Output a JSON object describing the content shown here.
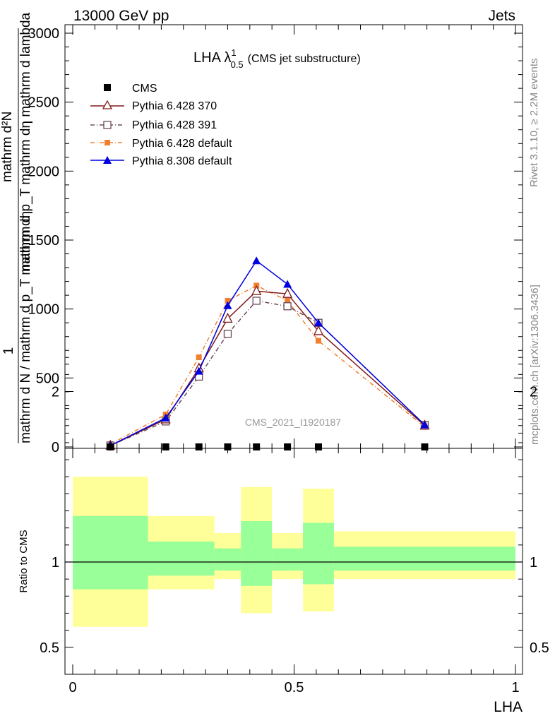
{
  "header": {
    "left": "13000 GeV pp",
    "right": "Jets"
  },
  "side_labels": {
    "rivet": "Rivet 3.1.10, ≥ 2.2M events",
    "mcplots": "mcplots.cern.ch [arXiv:1306.3436]"
  },
  "watermark": "CMS_2021_I1920187",
  "colors": {
    "cms": "#000000",
    "py370": "#7f1a1a",
    "py391": "#6b4a5a",
    "py6def": "#f08030",
    "py8def": "#0000e0",
    "band_outer": "#ffff99",
    "band_inner": "#99ff99"
  },
  "chart_data": [
    {
      "type": "line",
      "title_main": "LHA λ",
      "title_sup": "1",
      "title_sub": "0.5",
      "title_rest": "(CMS jet substructure)",
      "ylabel_parts": [
        "1",
        "mathrm d N / mathrm d p_T mathrm dη",
        "mathrm d²N",
        "mathrm d p_T mathrm dη mathrm d lambda"
      ],
      "xlim": [
        0,
        1
      ],
      "ylim": [
        0,
        3000
      ],
      "yticks": [
        0,
        500,
        1000,
        1500,
        2000,
        2500,
        3000
      ],
      "yticklabels": [
        "0",
        "500",
        "1000",
        "1500",
        "2000",
        "2500",
        "3000"
      ],
      "legend_position": "top-left",
      "series": [
        {
          "name": "CMS",
          "x": [
            0.085,
            0.21,
            0.285,
            0.35,
            0.415,
            0.485,
            0.555,
            0.795
          ],
          "y": [
            0,
            0,
            0,
            0,
            0,
            0,
            0,
            0
          ]
        },
        {
          "name": "Pythia 6.428 370",
          "x": [
            0.085,
            0.21,
            0.285,
            0.35,
            0.415,
            0.485,
            0.555,
            0.795
          ],
          "y": [
            10,
            200,
            570,
            930,
            1130,
            1110,
            840,
            155
          ]
        },
        {
          "name": "Pythia 6.428 391",
          "x": [
            0.085,
            0.21,
            0.285,
            0.35,
            0.415,
            0.485,
            0.555,
            0.795
          ],
          "y": [
            10,
            185,
            510,
            820,
            1060,
            1020,
            900,
            160
          ]
        },
        {
          "name": "Pythia 6.428 default",
          "x": [
            0.085,
            0.21,
            0.285,
            0.35,
            0.415,
            0.485,
            0.555,
            0.795
          ],
          "y": [
            20,
            235,
            650,
            1060,
            1170,
            1060,
            770,
            145
          ]
        },
        {
          "name": "Pythia 8.308 default",
          "x": [
            0.085,
            0.21,
            0.285,
            0.35,
            0.415,
            0.485,
            0.555,
            0.795
          ],
          "y": [
            10,
            210,
            550,
            1025,
            1350,
            1180,
            900,
            160
          ]
        }
      ]
    },
    {
      "type": "area",
      "ylabel": "Ratio to CMS",
      "xlabel": "LHA",
      "xlim": [
        0,
        1
      ],
      "ylim": [
        0.34,
        2.3
      ],
      "yticks": [
        0.5,
        1,
        2
      ],
      "yticklabels": [
        "0.5",
        "1",
        "2"
      ],
      "xticks": [
        0,
        0.5,
        1
      ],
      "xticklabels": [
        "0",
        "0.5",
        "1"
      ],
      "bins": [
        {
          "lo": 0.0,
          "hi": 0.17,
          "outer": [
            0.62,
            1.5
          ],
          "inner": [
            0.84,
            1.27
          ]
        },
        {
          "lo": 0.17,
          "hi": 0.32,
          "outer": [
            0.84,
            1.27
          ],
          "inner": [
            0.92,
            1.12
          ]
        },
        {
          "lo": 0.32,
          "hi": 0.38,
          "outer": [
            0.9,
            1.17
          ],
          "inner": [
            0.95,
            1.08
          ]
        },
        {
          "lo": 0.38,
          "hi": 0.45,
          "outer": [
            0.7,
            1.44
          ],
          "inner": [
            0.86,
            1.24
          ]
        },
        {
          "lo": 0.45,
          "hi": 0.52,
          "outer": [
            0.9,
            1.17
          ],
          "inner": [
            0.95,
            1.08
          ]
        },
        {
          "lo": 0.52,
          "hi": 0.59,
          "outer": [
            0.71,
            1.43
          ],
          "inner": [
            0.87,
            1.23
          ]
        },
        {
          "lo": 0.59,
          "hi": 1.0,
          "outer": [
            0.9,
            1.18
          ],
          "inner": [
            0.95,
            1.09
          ]
        }
      ]
    }
  ]
}
